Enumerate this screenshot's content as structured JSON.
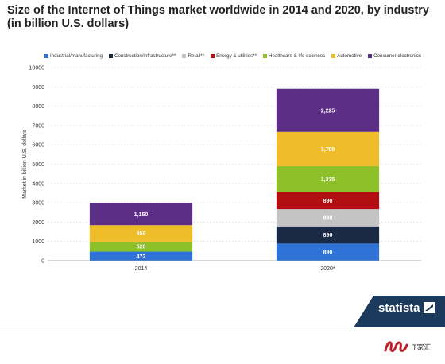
{
  "title": "Size of the Internet of Things market worldwide in 2014 and 2020, by industry (in billion U.S. dollars)",
  "brand": {
    "name": "statista"
  },
  "watermark": {
    "text": "T家汇"
  },
  "colors": {
    "industrial": "#2f73d9",
    "construction": "#1a2a45",
    "retail": "#c4c4c4",
    "energy": "#b30f12",
    "healthcare": "#8ec02a",
    "automotive": "#f0bd2a",
    "consumer": "#5c2e86",
    "footer": "#1b3a5c"
  },
  "chart_data": {
    "type": "bar",
    "stacked": true,
    "title": "Size of the Internet of Things market worldwide in 2014 and 2020, by industry (in billion U.S. dollars)",
    "xlabel": "",
    "ylabel": "Market in billion U.S. dollars",
    "categories": [
      "2014",
      "2020*"
    ],
    "ylim": [
      0,
      10000
    ],
    "yticks": [
      "0",
      "1000",
      "2000",
      "3000",
      "4000",
      "5000",
      "6000",
      "7000",
      "8000",
      "9000",
      "10000"
    ],
    "grid": true,
    "legend_position": "top",
    "series": [
      {
        "name": "Industrial/manufacturing",
        "color": "#2f73d9",
        "values": [
          472,
          890
        ],
        "labels": [
          "472",
          "890"
        ]
      },
      {
        "name": "Construction/infrastructure**",
        "color": "#1a2a45",
        "values": [
          0,
          890
        ],
        "labels": [
          "",
          "890"
        ]
      },
      {
        "name": "Retail**",
        "color": "#c4c4c4",
        "values": [
          0,
          890
        ],
        "labels": [
          "",
          "890"
        ]
      },
      {
        "name": "Energy & utilities**",
        "color": "#b30f12",
        "values": [
          0,
          890
        ],
        "labels": [
          "",
          "890"
        ]
      },
      {
        "name": "Healthcare & life sciences",
        "color": "#8ec02a",
        "values": [
          520,
          1335
        ],
        "labels": [
          "520",
          "1,335"
        ]
      },
      {
        "name": "Automotive",
        "color": "#f0bd2a",
        "values": [
          850,
          1780
        ],
        "labels": [
          "850",
          "1,780"
        ]
      },
      {
        "name": "Consumer electronics",
        "color": "#5c2e86",
        "values": [
          1150,
          2225
        ],
        "labels": [
          "1,150",
          "2,225"
        ]
      }
    ]
  }
}
